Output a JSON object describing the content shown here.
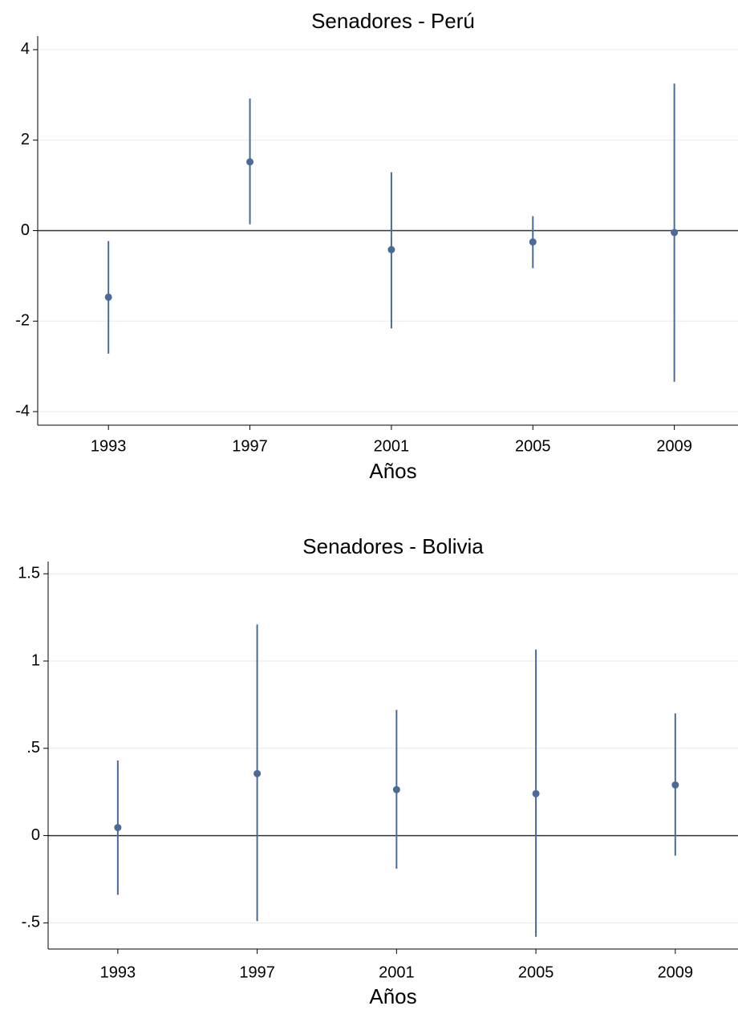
{
  "chart_data": [
    {
      "type": "errorbar",
      "title": "Senadores - Perú",
      "x_label": "Años",
      "x": [
        1993,
        1997,
        2001,
        2005,
        2009
      ],
      "series": [
        {
          "color": "#4a6b98",
          "values": [
            -1.47,
            1.52,
            -0.42,
            -0.25,
            -0.04
          ],
          "lower": [
            -2.72,
            0.14,
            -2.16,
            -0.83,
            -3.34
          ],
          "upper": [
            -0.23,
            2.92,
            1.29,
            0.32,
            3.25
          ]
        }
      ],
      "xlim": [
        1991,
        2010.8
      ],
      "xticks": [
        1993,
        1997,
        2001,
        2005,
        2009
      ],
      "ylim": [
        -4.3,
        4.3
      ],
      "yticks": [
        -4,
        -2,
        0,
        2,
        4
      ],
      "grid": true,
      "reference_line": 0
    },
    {
      "type": "errorbar",
      "title": "Senadores - Bolivia",
      "x_label": "Años",
      "x": [
        1993,
        1997,
        2001,
        2005,
        2009
      ],
      "series": [
        {
          "color": "#4a6b98",
          "values": [
            0.046,
            0.355,
            0.263,
            0.24,
            0.29
          ],
          "lower": [
            -0.34,
            -0.49,
            -0.19,
            -0.58,
            -0.115
          ],
          "upper": [
            0.43,
            1.21,
            0.72,
            1.066,
            0.7
          ]
        }
      ],
      "xlim": [
        1991,
        2010.8
      ],
      "xticks": [
        1993,
        1997,
        2001,
        2005,
        2009
      ],
      "ylim": [
        -0.65,
        1.57
      ],
      "yticks": [
        {
          "value": -0.5,
          "label": "-.5"
        },
        0,
        {
          "value": 0.5,
          "label": ".5"
        },
        1,
        1.5
      ],
      "grid": true,
      "reference_line": 0
    }
  ]
}
